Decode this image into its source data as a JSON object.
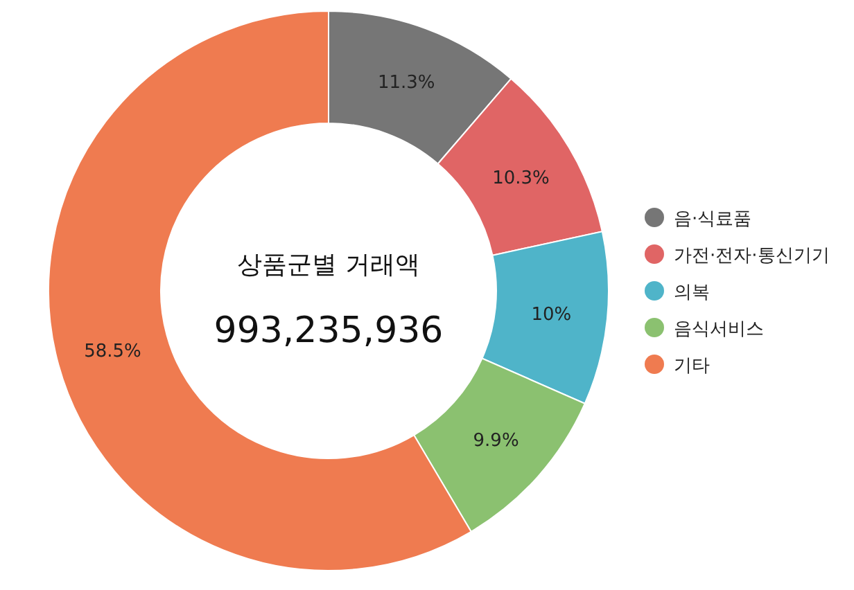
{
  "chart_data": {
    "type": "donut",
    "title": "상품군별 거래액",
    "subtitle": "993,235,936",
    "categories": [
      "음·식료품",
      "가전·전자·통신기기",
      "의복",
      "음식서비스",
      "기타"
    ],
    "values": [
      11.3,
      10.3,
      10,
      9.9,
      58.5
    ],
    "colors": [
      "#767676",
      "#e06565",
      "#4fb4c9",
      "#8bc170",
      "#ef7b50"
    ],
    "value_labels": [
      "11.3%",
      "10.3%",
      "10%",
      "9.9%",
      "58.5%"
    ],
    "legend": "right"
  }
}
